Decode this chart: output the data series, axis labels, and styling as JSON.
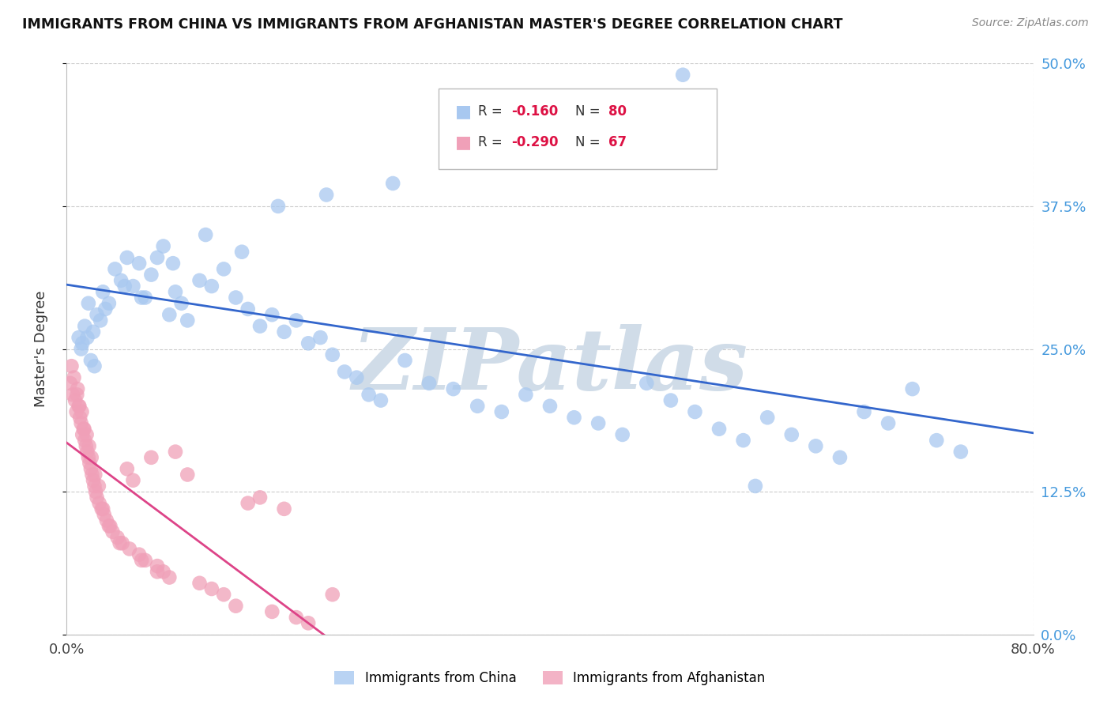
{
  "title": "IMMIGRANTS FROM CHINA VS IMMIGRANTS FROM AFGHANISTAN MASTER'S DEGREE CORRELATION CHART",
  "source": "Source: ZipAtlas.com",
  "ylabel": "Master's Degree",
  "ytick_values": [
    0.0,
    12.5,
    25.0,
    37.5,
    50.0
  ],
  "xlim": [
    0.0,
    80.0
  ],
  "ylim": [
    0.0,
    50.0
  ],
  "china_R": -0.16,
  "china_N": 80,
  "afghan_R": -0.29,
  "afghan_N": 67,
  "china_color": "#A8C8F0",
  "afghan_color": "#F0A0B8",
  "china_line_color": "#3366CC",
  "afghan_line_color": "#DD4488",
  "watermark": "ZIPatlas",
  "watermark_color": "#D0DCE8",
  "china_scatter_x": [
    1.0,
    1.2,
    1.5,
    1.8,
    2.0,
    2.2,
    2.5,
    2.8,
    3.0,
    3.5,
    4.0,
    4.5,
    5.0,
    5.5,
    6.0,
    6.5,
    7.0,
    7.5,
    8.0,
    8.5,
    9.0,
    9.5,
    10.0,
    11.0,
    12.0,
    13.0,
    14.0,
    15.0,
    16.0,
    17.0,
    18.0,
    19.0,
    20.0,
    21.0,
    22.0,
    23.0,
    24.0,
    25.0,
    26.0,
    28.0,
    30.0,
    32.0,
    34.0,
    36.0,
    38.0,
    40.0,
    42.0,
    44.0,
    46.0,
    48.0,
    50.0,
    52.0,
    54.0,
    56.0,
    58.0,
    60.0,
    62.0,
    64.0,
    66.0,
    68.0,
    70.0,
    72.0,
    74.0,
    1.3,
    1.7,
    2.3,
    3.2,
    4.8,
    6.2,
    8.8,
    11.5,
    14.5,
    17.5,
    21.5,
    27.0,
    33.0,
    39.0,
    45.0,
    51.0,
    57.0
  ],
  "china_scatter_y": [
    26.0,
    25.0,
    27.0,
    29.0,
    24.0,
    26.5,
    28.0,
    27.5,
    30.0,
    29.0,
    32.0,
    31.0,
    33.0,
    30.5,
    32.5,
    29.5,
    31.5,
    33.0,
    34.0,
    28.0,
    30.0,
    29.0,
    27.5,
    31.0,
    30.5,
    32.0,
    29.5,
    28.5,
    27.0,
    28.0,
    26.5,
    27.5,
    25.5,
    26.0,
    24.5,
    23.0,
    22.5,
    21.0,
    20.5,
    24.0,
    22.0,
    21.5,
    20.0,
    19.5,
    21.0,
    20.0,
    19.0,
    18.5,
    17.5,
    22.0,
    20.5,
    19.5,
    18.0,
    17.0,
    19.0,
    17.5,
    16.5,
    15.5,
    19.5,
    18.5,
    21.5,
    17.0,
    16.0,
    25.5,
    26.0,
    23.5,
    28.5,
    30.5,
    29.5,
    32.5,
    35.0,
    33.5,
    37.5,
    38.5,
    39.5,
    42.0,
    43.0,
    44.5,
    49.0,
    13.0
  ],
  "afghan_scatter_x": [
    0.3,
    0.5,
    0.7,
    0.8,
    0.9,
    1.0,
    1.1,
    1.2,
    1.3,
    1.4,
    1.5,
    1.6,
    1.7,
    1.8,
    1.9,
    2.0,
    2.1,
    2.2,
    2.3,
    2.4,
    2.5,
    2.7,
    2.9,
    3.1,
    3.3,
    3.5,
    3.8,
    4.2,
    4.6,
    5.0,
    5.5,
    6.0,
    6.5,
    7.0,
    7.5,
    8.0,
    8.5,
    9.0,
    10.0,
    11.0,
    12.0,
    13.0,
    14.0,
    15.0,
    16.0,
    17.0,
    18.0,
    19.0,
    20.0,
    22.0,
    0.4,
    0.6,
    0.85,
    1.05,
    1.25,
    1.45,
    1.65,
    1.85,
    2.05,
    2.35,
    2.65,
    3.0,
    3.6,
    4.4,
    5.2,
    6.2,
    7.5
  ],
  "afghan_scatter_y": [
    22.0,
    21.0,
    20.5,
    19.5,
    21.5,
    20.0,
    19.0,
    18.5,
    17.5,
    18.0,
    17.0,
    16.5,
    16.0,
    15.5,
    15.0,
    14.5,
    14.0,
    13.5,
    13.0,
    12.5,
    12.0,
    11.5,
    11.0,
    10.5,
    10.0,
    9.5,
    9.0,
    8.5,
    8.0,
    14.5,
    13.5,
    7.0,
    6.5,
    15.5,
    6.0,
    5.5,
    5.0,
    16.0,
    14.0,
    4.5,
    4.0,
    3.5,
    2.5,
    11.5,
    12.0,
    2.0,
    11.0,
    1.5,
    1.0,
    3.5,
    23.5,
    22.5,
    21.0,
    20.0,
    19.5,
    18.0,
    17.5,
    16.5,
    15.5,
    14.0,
    13.0,
    11.0,
    9.5,
    8.0,
    7.5,
    6.5,
    5.5
  ]
}
